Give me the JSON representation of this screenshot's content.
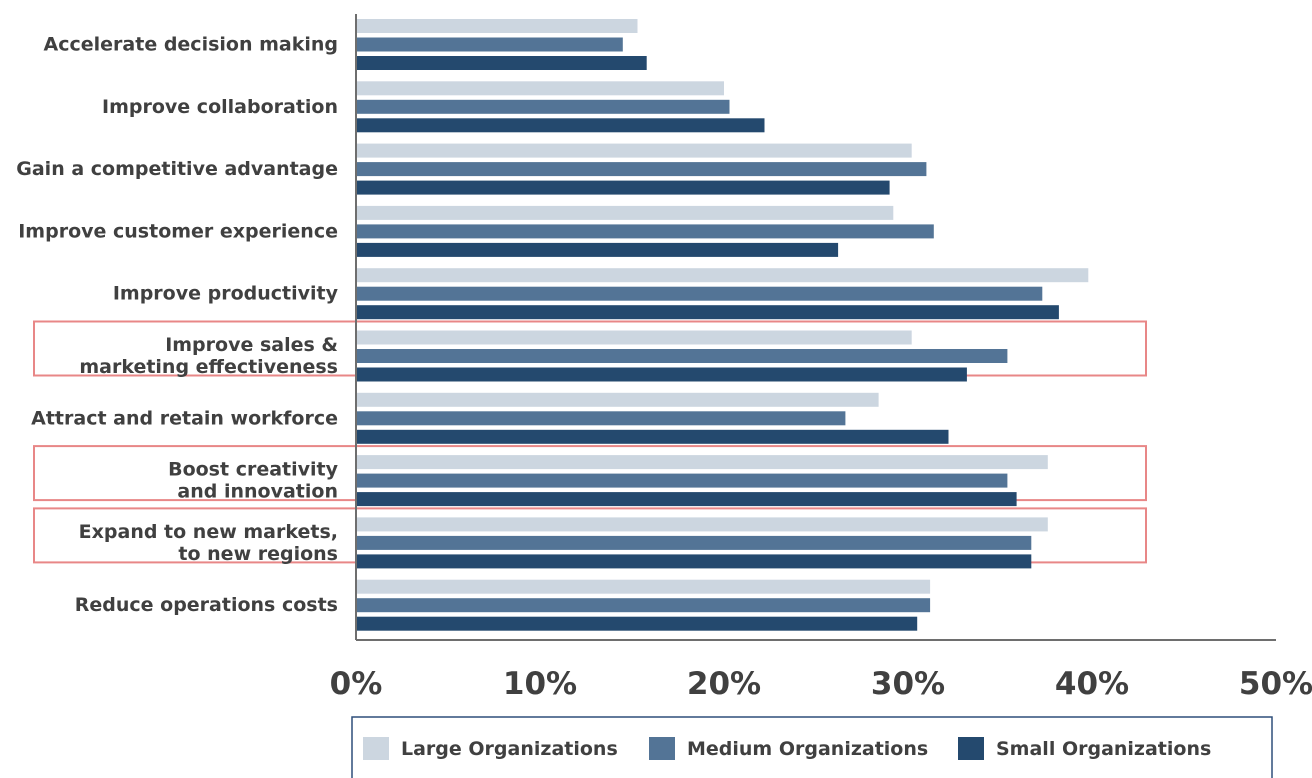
{
  "chart_data": {
    "type": "bar",
    "orientation": "horizontal",
    "categories": [
      [
        "Accelerate decision making"
      ],
      [
        "Improve collaboration"
      ],
      [
        "Gain a competitive advantage"
      ],
      [
        "Improve customer experience"
      ],
      [
        "Improve productivity"
      ],
      [
        "Improve sales &",
        "marketing effectiveness"
      ],
      [
        "Attract and retain workforce"
      ],
      [
        "Boost creativity",
        "and innovation"
      ],
      [
        "Expand to new markets,",
        "to new regions"
      ],
      [
        "Reduce operations costs"
      ]
    ],
    "series": [
      {
        "name": "Large Organizations",
        "color": "#ccd6e0",
        "values": [
          15.3,
          20.0,
          30.2,
          29.2,
          39.8,
          30.2,
          28.4,
          37.6,
          37.6,
          31.2
        ]
      },
      {
        "name": "Medium Organizations",
        "color": "#537496",
        "values": [
          14.5,
          20.3,
          31.0,
          31.4,
          37.3,
          35.4,
          26.6,
          35.4,
          36.7,
          31.2
        ]
      },
      {
        "name": "Small Organizations",
        "color": "#24496e",
        "values": [
          15.8,
          22.2,
          29.0,
          26.2,
          38.2,
          33.2,
          32.2,
          35.9,
          36.7,
          30.5
        ]
      }
    ],
    "xlim": [
      0,
      50
    ],
    "xticks": [
      "0%",
      "10%",
      "20%",
      "30%",
      "40%",
      "50%"
    ],
    "highlighted_categories": [
      5,
      7,
      8
    ],
    "highlight_color": "#e88787",
    "legend_position": "bottom-center",
    "legend_border_color": "#2f4f7a",
    "grid": false,
    "title": "",
    "xlabel": "",
    "ylabel": ""
  }
}
